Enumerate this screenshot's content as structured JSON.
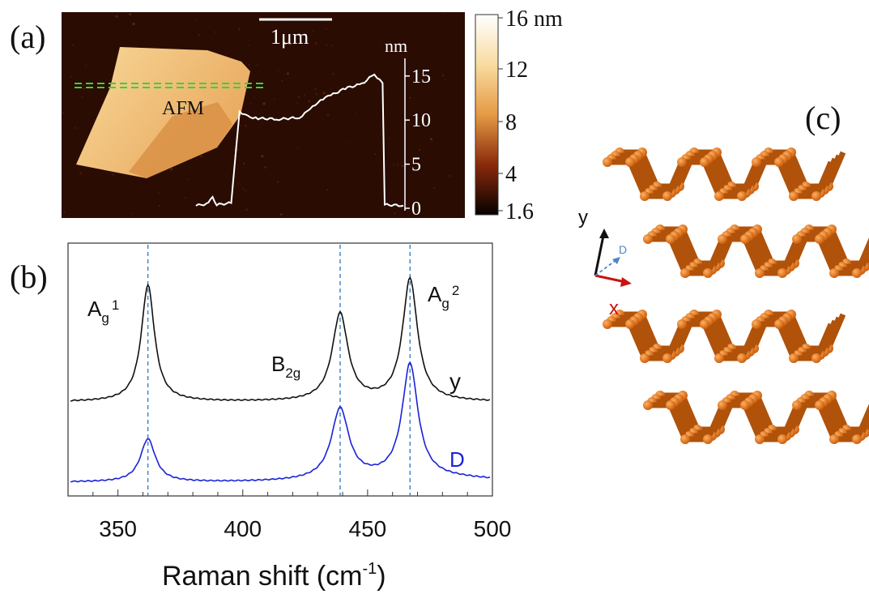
{
  "panel_labels": {
    "a": "(a)",
    "b": "(b)",
    "c": "(c)"
  },
  "afm": {
    "label": "AFM",
    "scale_bar": "1μm",
    "colorbar_ticks": [
      "16 nm",
      "12",
      "8",
      "4",
      "1.6"
    ],
    "profile_unit": "nm",
    "profile_ticks": [
      "15",
      "10",
      "5",
      "0"
    ],
    "colors": {
      "background": "#2a0c02",
      "flake_light": "#f4c97a",
      "flake_dark": "#d68d3e",
      "line_cut": "#39d339"
    }
  },
  "raman": {
    "xlabel_main": "Raman shift (cm",
    "xlabel_sup": "-1",
    "xlabel_end": ")",
    "peak_labels": {
      "ag1_base": "A",
      "ag1_sub": "g",
      "ag1_sup": "1",
      "b2g_base": "B",
      "b2g_sub": "2g",
      "ag2_base": "A",
      "ag2_sub": "g",
      "ag2_sup": "2"
    },
    "series_labels": {
      "y": "y",
      "d": "D"
    }
  },
  "crystal": {
    "axis_y": "y",
    "axis_x": "x",
    "axis_d": "D",
    "colors": {
      "atom": "#e8731a",
      "axis_y": "#111111",
      "axis_x": "#cc1111",
      "axis_d": "#4a86c8"
    }
  },
  "chart_data": [
    {
      "type": "line",
      "xlabel": "Raman shift (cm-1)",
      "ylabel": "",
      "xlim": [
        330,
        500
      ],
      "x_ticks": [
        350,
        400,
        450,
        500
      ],
      "peaks": [
        362,
        439,
        467
      ],
      "series": [
        {
          "name": "y",
          "color": "#111111",
          "baseline": 0,
          "peak_heights": [
            1.0,
            0.75,
            1.05
          ],
          "peak_widths": [
            3.2,
            3.8,
            3.6
          ]
        },
        {
          "name": "D",
          "color": "#1a22d8",
          "baseline": 0,
          "peak_heights": [
            0.38,
            0.62,
            1.0
          ],
          "peak_widths": [
            3.6,
            4.2,
            3.8
          ]
        }
      ]
    },
    {
      "type": "line",
      "ylabel": "nm",
      "ylim": [
        0,
        17
      ],
      "y_ticks": [
        0,
        5,
        10,
        15
      ],
      "profile": [
        {
          "x": 0,
          "y": 0.3
        },
        {
          "x": 0.05,
          "y": 0.5
        },
        {
          "x": 0.08,
          "y": 1.3
        },
        {
          "x": 0.1,
          "y": 0.4
        },
        {
          "x": 0.17,
          "y": 0.6
        },
        {
          "x": 0.21,
          "y": 11
        },
        {
          "x": 0.25,
          "y": 10.4
        },
        {
          "x": 0.3,
          "y": 10.2
        },
        {
          "x": 0.4,
          "y": 10.1
        },
        {
          "x": 0.5,
          "y": 10.3
        },
        {
          "x": 0.55,
          "y": 11.2
        },
        {
          "x": 0.6,
          "y": 12.3
        },
        {
          "x": 0.65,
          "y": 12.8
        },
        {
          "x": 0.72,
          "y": 13.6
        },
        {
          "x": 0.8,
          "y": 14.1
        },
        {
          "x": 0.86,
          "y": 15.2
        },
        {
          "x": 0.9,
          "y": 14.2
        },
        {
          "x": 0.91,
          "y": 0.4
        },
        {
          "x": 1.0,
          "y": 0.3
        }
      ]
    }
  ]
}
